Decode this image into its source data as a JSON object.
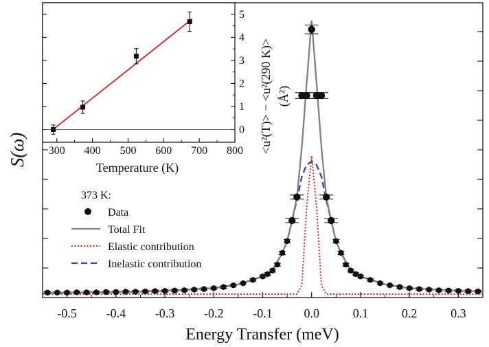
{
  "chart_data": [
    {
      "type": "scatter",
      "xlabel": "Energy Transfer (meV)",
      "ylabel": "S(ω)",
      "xlim": [
        -0.55,
        0.35
      ],
      "xticks": [
        "-0.5",
        "-0.4",
        "-0.3",
        "-0.2",
        "-0.1",
        "0.0",
        "0.1",
        "0.2",
        "0.3"
      ],
      "yticks_labeled": false,
      "legend": {
        "title": "373 K:",
        "placement": "center-left",
        "entries": [
          "Data",
          "Total Fit",
          "Elastic contribution",
          "Inelastic contribution"
        ]
      },
      "colors": {
        "data": "#111111",
        "total": "#808080",
        "elastic": "#dd2222",
        "inelastic": "#2b4fa8"
      },
      "series": [
        {
          "name": "Data",
          "style": "points",
          "x": [
            -0.54,
            -0.52,
            -0.5,
            -0.48,
            -0.46,
            -0.44,
            -0.42,
            -0.4,
            -0.38,
            -0.36,
            -0.34,
            -0.32,
            -0.3,
            -0.28,
            -0.26,
            -0.24,
            -0.22,
            -0.2,
            -0.18,
            -0.16,
            -0.14,
            -0.12,
            -0.1,
            -0.09,
            -0.08,
            -0.07,
            -0.06,
            -0.05,
            -0.04,
            -0.03,
            -0.02,
            -0.01,
            0.0,
            0.01,
            0.02,
            0.03,
            0.04,
            0.05,
            0.06,
            0.07,
            0.08,
            0.09,
            0.1,
            0.12,
            0.14,
            0.16,
            0.18,
            0.2,
            0.22,
            0.24,
            0.26,
            0.28,
            0.3,
            0.32,
            0.34
          ],
          "y": [
            0.005,
            0.005,
            0.005,
            0.006,
            0.006,
            0.006,
            0.007,
            0.007,
            0.008,
            0.008,
            0.009,
            0.01,
            0.011,
            0.012,
            0.013,
            0.015,
            0.017,
            0.02,
            0.024,
            0.03,
            0.037,
            0.048,
            0.06,
            0.068,
            0.08,
            0.1,
            0.14,
            0.18,
            0.25,
            0.33,
            0.675,
            0.675,
            0.9,
            0.675,
            0.675,
            0.33,
            0.25,
            0.18,
            0.14,
            0.1,
            0.08,
            0.068,
            0.06,
            0.048,
            0.037,
            0.03,
            0.024,
            0.02,
            0.017,
            0.015,
            0.013,
            0.012,
            0.011,
            0.01,
            0.009
          ],
          "err": [
            0.004,
            0.004,
            0.004,
            0.004,
            0.004,
            0.004,
            0.004,
            0.004,
            0.004,
            0.004,
            0.004,
            0.004,
            0.004,
            0.004,
            0.004,
            0.004,
            0.004,
            0.004,
            0.004,
            0.004,
            0.004,
            0.004,
            0.005,
            0.005,
            0.005,
            0.005,
            0.006,
            0.006,
            0.007,
            0.007,
            0.01,
            0.01,
            0.015,
            0.01,
            0.01,
            0.007,
            0.007,
            0.006,
            0.006,
            0.005,
            0.005,
            0.005,
            0.005,
            0.004,
            0.004,
            0.004,
            0.004,
            0.004,
            0.004,
            0.004,
            0.004,
            0.004,
            0.004,
            0.004,
            0.004
          ]
        },
        {
          "name": "Total Fit",
          "style": "line",
          "x": [
            -0.55,
            -0.5,
            -0.4,
            -0.3,
            -0.2,
            -0.15,
            -0.1,
            -0.08,
            -0.06,
            -0.05,
            -0.04,
            -0.03,
            -0.02,
            -0.01,
            0.0,
            0.01,
            0.02,
            0.03,
            0.04,
            0.05,
            0.06,
            0.08,
            0.1,
            0.15,
            0.2,
            0.3,
            0.35
          ],
          "y": [
            0.005,
            0.005,
            0.007,
            0.011,
            0.02,
            0.033,
            0.06,
            0.08,
            0.14,
            0.18,
            0.25,
            0.33,
            0.5,
            0.72,
            0.93,
            0.72,
            0.5,
            0.33,
            0.25,
            0.18,
            0.14,
            0.08,
            0.06,
            0.033,
            0.02,
            0.011,
            0.009
          ]
        },
        {
          "name": "Elastic contribution",
          "style": "dotted",
          "x": [
            -0.55,
            -0.03,
            -0.02,
            -0.01,
            0.0,
            0.01,
            0.02,
            0.03,
            0.35
          ],
          "y": [
            0.0,
            0.0,
            0.03,
            0.3,
            0.47,
            0.3,
            0.03,
            0.0,
            0.0
          ]
        },
        {
          "name": "Inelastic contribution",
          "style": "dashed",
          "x": [
            -0.55,
            -0.5,
            -0.4,
            -0.3,
            -0.2,
            -0.15,
            -0.1,
            -0.08,
            -0.06,
            -0.05,
            -0.04,
            -0.03,
            -0.02,
            -0.01,
            0.0,
            0.01,
            0.02,
            0.03,
            0.04,
            0.05,
            0.06,
            0.08,
            0.1,
            0.15,
            0.2,
            0.3,
            0.35
          ],
          "y": [
            0.005,
            0.005,
            0.007,
            0.011,
            0.02,
            0.033,
            0.06,
            0.08,
            0.14,
            0.18,
            0.25,
            0.32,
            0.4,
            0.44,
            0.45,
            0.44,
            0.4,
            0.32,
            0.25,
            0.18,
            0.14,
            0.08,
            0.06,
            0.033,
            0.02,
            0.011,
            0.009
          ]
        }
      ]
    },
    {
      "type": "scatter",
      "inset": true,
      "xlabel": "Temperature (K)",
      "ylabel": "<u²(T)> − <u²(290 K)>",
      "ylabel_unit": "(Å²)",
      "xlim": [
        260,
        800
      ],
      "ylim": [
        -0.55,
        5.5
      ],
      "xticks": [
        "300",
        "400",
        "500",
        "600",
        "700",
        "800"
      ],
      "yticks": [
        "0",
        "1",
        "2",
        "3",
        "4",
        "5"
      ],
      "zero_line": true,
      "colors": {
        "data": "#111111",
        "fit": "#dd2222"
      },
      "series": [
        {
          "name": "",
          "style": "points",
          "x": [
            290,
            373,
            523,
            673
          ],
          "y": [
            0.0,
            0.97,
            3.18,
            4.68
          ],
          "err": [
            0.2,
            0.27,
            0.33,
            0.42
          ]
        },
        {
          "name": "",
          "style": "line",
          "x": [
            285,
            680
          ],
          "y": [
            -0.05,
            4.8
          ]
        }
      ]
    }
  ]
}
